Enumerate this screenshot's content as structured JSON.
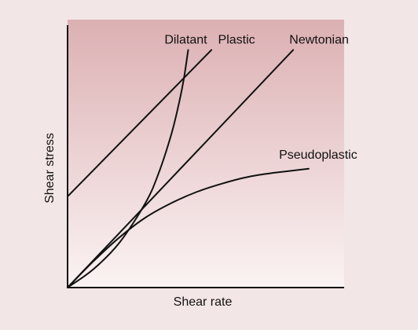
{
  "chart_data": {
    "type": "line",
    "title": "",
    "xlabel": "Shear rate",
    "ylabel": "Shear stress",
    "xlim": [
      0,
      100
    ],
    "ylim": [
      0,
      100
    ],
    "grid": false,
    "legend": "none (series labelled at line ends)",
    "background_gradient": {
      "top": "#dcb0b3",
      "bottom": "#fbf3f3"
    },
    "line_color": "#111111",
    "series": [
      {
        "name": "Dilatant",
        "points": [
          [
            0,
            0
          ],
          [
            10,
            7
          ],
          [
            20,
            17
          ],
          [
            30,
            32
          ],
          [
            35,
            43
          ],
          [
            40,
            58
          ],
          [
            43,
            70
          ],
          [
            45,
            80
          ],
          [
            46.5,
            90
          ]
        ]
      },
      {
        "name": "Plastic",
        "points": [
          [
            0,
            34.5
          ],
          [
            55.5,
            90
          ]
        ]
      },
      {
        "name": "Newtonian",
        "points": [
          [
            0,
            0
          ],
          [
            87,
            90
          ]
        ]
      },
      {
        "name": "Pseudoplastic",
        "points": [
          [
            0,
            0
          ],
          [
            10,
            10
          ],
          [
            20,
            19
          ],
          [
            30,
            26.5
          ],
          [
            40,
            32
          ],
          [
            50,
            36.3
          ],
          [
            60,
            39.5
          ],
          [
            70,
            42
          ],
          [
            80,
            43.5
          ],
          [
            93,
            45
          ]
        ]
      }
    ]
  }
}
